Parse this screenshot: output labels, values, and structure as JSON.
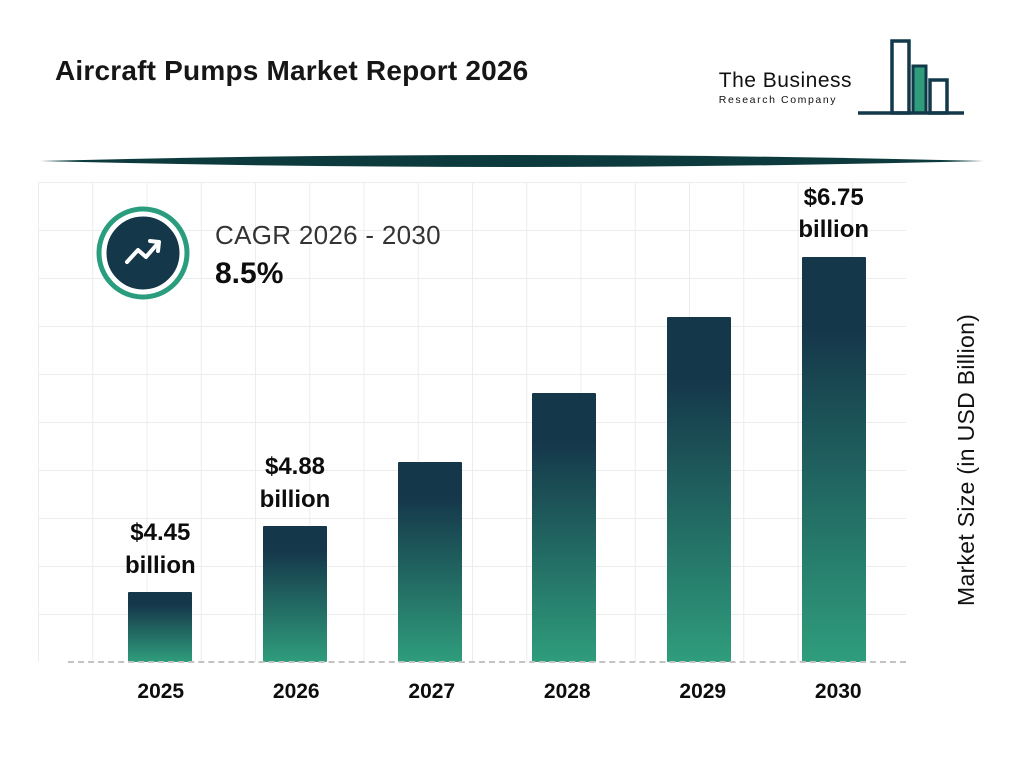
{
  "header": {
    "title": "Aircraft Pumps Market Report 2026",
    "logo": {
      "line1": "The Business",
      "line2": "Research Company"
    }
  },
  "cagr": {
    "label": "CAGR 2026 - 2030",
    "value": "8.5%"
  },
  "chart_data": {
    "type": "bar",
    "title": "Aircraft Pumps Market Report 2026",
    "categories": [
      "2025",
      "2026",
      "2027",
      "2028",
      "2029",
      "2030"
    ],
    "values": [
      4.45,
      4.88,
      5.29,
      5.74,
      6.23,
      6.75
    ],
    "bar_labels": [
      {
        "amount": "$4.45",
        "unit": "billion"
      },
      {
        "amount": "$4.88",
        "unit": "billion"
      },
      null,
      null,
      null,
      {
        "amount": "$6.75",
        "unit": "billion"
      }
    ],
    "xlabel": "",
    "ylabel": "Market Size (in USD Billion)",
    "ylim": [
      4.0,
      7.1
    ],
    "grid": true,
    "legend": false,
    "bar_gradient_top": "#15374a",
    "bar_gradient_bottom": "#2f9d7c"
  },
  "colors": {
    "accent_teal": "#2a9d7e",
    "dark_navy": "#15374a",
    "divider": "#0d3b3d",
    "grid": "#ececec",
    "text": "#0d0d0d"
  }
}
